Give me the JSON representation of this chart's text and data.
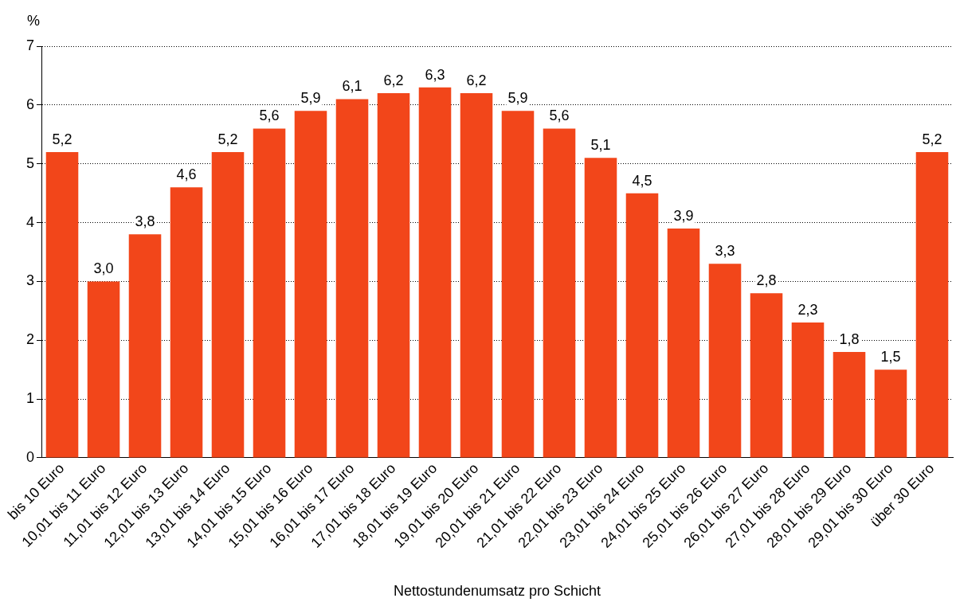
{
  "chart_data": {
    "type": "bar",
    "ylabel": "%",
    "xlabel": "Nettostundenumsatz pro Schicht",
    "categories": [
      "bis 10 Euro",
      "10,01 bis 11 Euro",
      "11,01 bis 12 Euro",
      "12,01 bis 13 Euro",
      "13,01 bis 14 Euro",
      "14,01 bis 15 Euro",
      "15,01 bis 16 Euro",
      "16,01 bis 17 Euro",
      "17,01 bis 18 Euro",
      "18,01 bis 19 Euro",
      "19,01 bis 20 Euro",
      "20,01 bis 21 Euro",
      "21,01 bis 22 Euro",
      "22,01 bis 23 Euro",
      "23,01 bis 24 Euro",
      "24,01 bis 25 Euro",
      "25,01 bis 26 Euro",
      "26,01 bis 27 Euro",
      "27,01 bis 28 Euro",
      "28,01 bis 29 Euro",
      "29,01 bis 30 Euro",
      "über 30 Euro"
    ],
    "values": [
      5.2,
      3.0,
      3.8,
      4.6,
      5.2,
      5.6,
      5.9,
      6.1,
      6.2,
      6.3,
      6.2,
      5.9,
      5.6,
      5.1,
      4.5,
      3.9,
      3.3,
      2.8,
      2.3,
      1.8,
      1.5,
      5.2
    ],
    "color": "#f2461a",
    "value_labels": [
      "5,2",
      "3,0",
      "3,8",
      "4,6",
      "5,2",
      "5,6",
      "5,9",
      "6,1",
      "6,2",
      "6,3",
      "6,2",
      "5,9",
      "5,6",
      "5,1",
      "4,5",
      "3,9",
      "3,3",
      "2,8",
      "2,3",
      "1,8",
      "1,5",
      "5,2"
    ],
    "ylim": [
      0,
      7
    ],
    "yticks": [
      0,
      1,
      2,
      3,
      4,
      5,
      6,
      7
    ],
    "grid": "y",
    "legend": false
  }
}
